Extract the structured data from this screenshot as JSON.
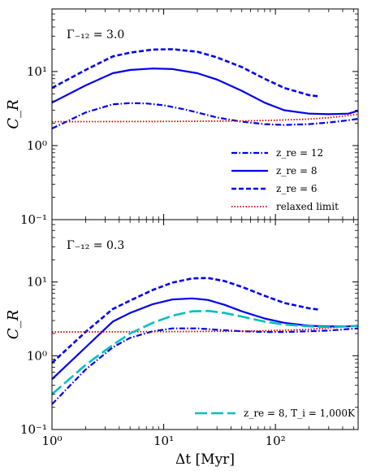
{
  "chart_data": [
    {
      "type": "line",
      "panel": "top",
      "annotation": "Γ₋₁₂ = 3.0",
      "ylabel": "C_R",
      "xscale": "log",
      "yscale": "log",
      "xlim": [
        1,
        550
      ],
      "ylim": [
        0.1,
        70
      ],
      "yticks": [
        {
          "value": 0.1,
          "label": "10⁻¹"
        },
        {
          "value": 1,
          "label": "10⁰"
        },
        {
          "value": 10,
          "label": "10¹"
        }
      ],
      "legend_position": "bottom-right",
      "series": [
        {
          "name": "z_re = 12",
          "color": "#0000ee",
          "style": "dashdot",
          "x": [
            1,
            2,
            3.5,
            5,
            7,
            10,
            15,
            20,
            30,
            50,
            80,
            120,
            200,
            300,
            450,
            550
          ],
          "y": [
            1.7,
            2.8,
            3.6,
            3.75,
            3.7,
            3.5,
            3.1,
            2.8,
            2.4,
            2.1,
            1.95,
            1.9,
            1.95,
            2.05,
            2.2,
            2.3
          ]
        },
        {
          "name": "z_re = 8",
          "color": "#0000ee",
          "style": "solid",
          "x": [
            1,
            2,
            3.5,
            5,
            8,
            12,
            20,
            30,
            50,
            80,
            120,
            200,
            300,
            450,
            550
          ],
          "y": [
            3.8,
            6.5,
            9.5,
            10.5,
            11.0,
            10.8,
            9.5,
            7.8,
            5.5,
            3.8,
            3.0,
            2.7,
            2.65,
            2.7,
            2.95
          ]
        },
        {
          "name": "z_re = 6",
          "color": "#0000ee",
          "style": "dashed",
          "x": [
            1,
            2,
            3.5,
            5,
            8,
            12,
            20,
            30,
            50,
            80,
            120,
            200,
            250
          ],
          "y": [
            6.0,
            10.5,
            16.0,
            18.0,
            19.8,
            20.0,
            18.5,
            15.5,
            11.5,
            8.0,
            6.0,
            4.8,
            4.6
          ]
        },
        {
          "name": "relaxed limit",
          "color": "#dd0000",
          "style": "dotted",
          "x": [
            1,
            10,
            50,
            100,
            200,
            300,
            450,
            550
          ],
          "y": [
            2.1,
            2.12,
            2.15,
            2.2,
            2.28,
            2.38,
            2.55,
            2.65
          ]
        }
      ]
    },
    {
      "type": "line",
      "panel": "bottom",
      "annotation": "Γ₋₁₂ = 0.3",
      "xlabel": "Δt [Myr]",
      "ylabel": "C_R",
      "xscale": "log",
      "yscale": "log",
      "xlim": [
        1,
        550
      ],
      "ylim": [
        0.1,
        70
      ],
      "xticks": [
        {
          "value": 1,
          "label": "10⁰"
        },
        {
          "value": 10,
          "label": "10¹"
        },
        {
          "value": 100,
          "label": "10²"
        }
      ],
      "yticks": [
        {
          "value": 0.1,
          "label": "10⁻¹"
        },
        {
          "value": 1,
          "label": "10⁰"
        },
        {
          "value": 10,
          "label": "10¹"
        }
      ],
      "legend_position": "bottom-right",
      "series": [
        {
          "name": "z_re = 12",
          "color": "#0000ee",
          "style": "dashdot",
          "x": [
            1,
            2,
            3.5,
            5,
            8,
            12,
            20,
            30,
            50,
            80,
            120,
            200,
            300,
            450,
            550
          ],
          "y": [
            0.22,
            0.65,
            1.3,
            1.75,
            2.15,
            2.35,
            2.35,
            2.25,
            2.15,
            2.1,
            2.1,
            2.15,
            2.2,
            2.3,
            2.35
          ]
        },
        {
          "name": "z_re = 8",
          "color": "#0000ee",
          "style": "solid",
          "x": [
            1,
            2,
            3.5,
            5,
            8,
            12,
            18,
            25,
            35,
            50,
            80,
            120,
            200,
            300,
            450,
            550
          ],
          "y": [
            0.48,
            1.3,
            2.9,
            3.8,
            5.0,
            5.8,
            6.0,
            5.7,
            4.9,
            4.0,
            3.2,
            2.8,
            2.55,
            2.5,
            2.5,
            2.55
          ]
        },
        {
          "name": "z_re = 6",
          "color": "#0000ee",
          "style": "dashed",
          "x": [
            1,
            2,
            3.5,
            5,
            8,
            12,
            18,
            25,
            35,
            50,
            80,
            120,
            200,
            250
          ],
          "y": [
            0.8,
            2.1,
            4.3,
            5.6,
            7.8,
            9.8,
            11.2,
            11.3,
            10.3,
            8.6,
            6.5,
            5.2,
            4.4,
            4.2
          ]
        },
        {
          "name": "relaxed limit",
          "color": "#dd0000",
          "style": "dotted",
          "x": [
            1,
            10,
            50,
            100,
            200,
            300,
            450,
            550
          ],
          "y": [
            2.1,
            2.12,
            2.15,
            2.2,
            2.28,
            2.38,
            2.5,
            2.6
          ]
        },
        {
          "name": "z_re = 8, T_i = 1,000K",
          "color": "#00bfbf",
          "style": "longdash",
          "x": [
            1,
            2,
            3.5,
            5,
            8,
            12,
            18,
            25,
            35,
            50,
            80,
            120,
            200,
            300,
            450,
            550
          ],
          "y": [
            0.3,
            0.75,
            1.4,
            2.0,
            2.8,
            3.5,
            4.0,
            4.05,
            3.8,
            3.4,
            2.9,
            2.65,
            2.5,
            2.45,
            2.5,
            2.55
          ]
        }
      ]
    }
  ]
}
